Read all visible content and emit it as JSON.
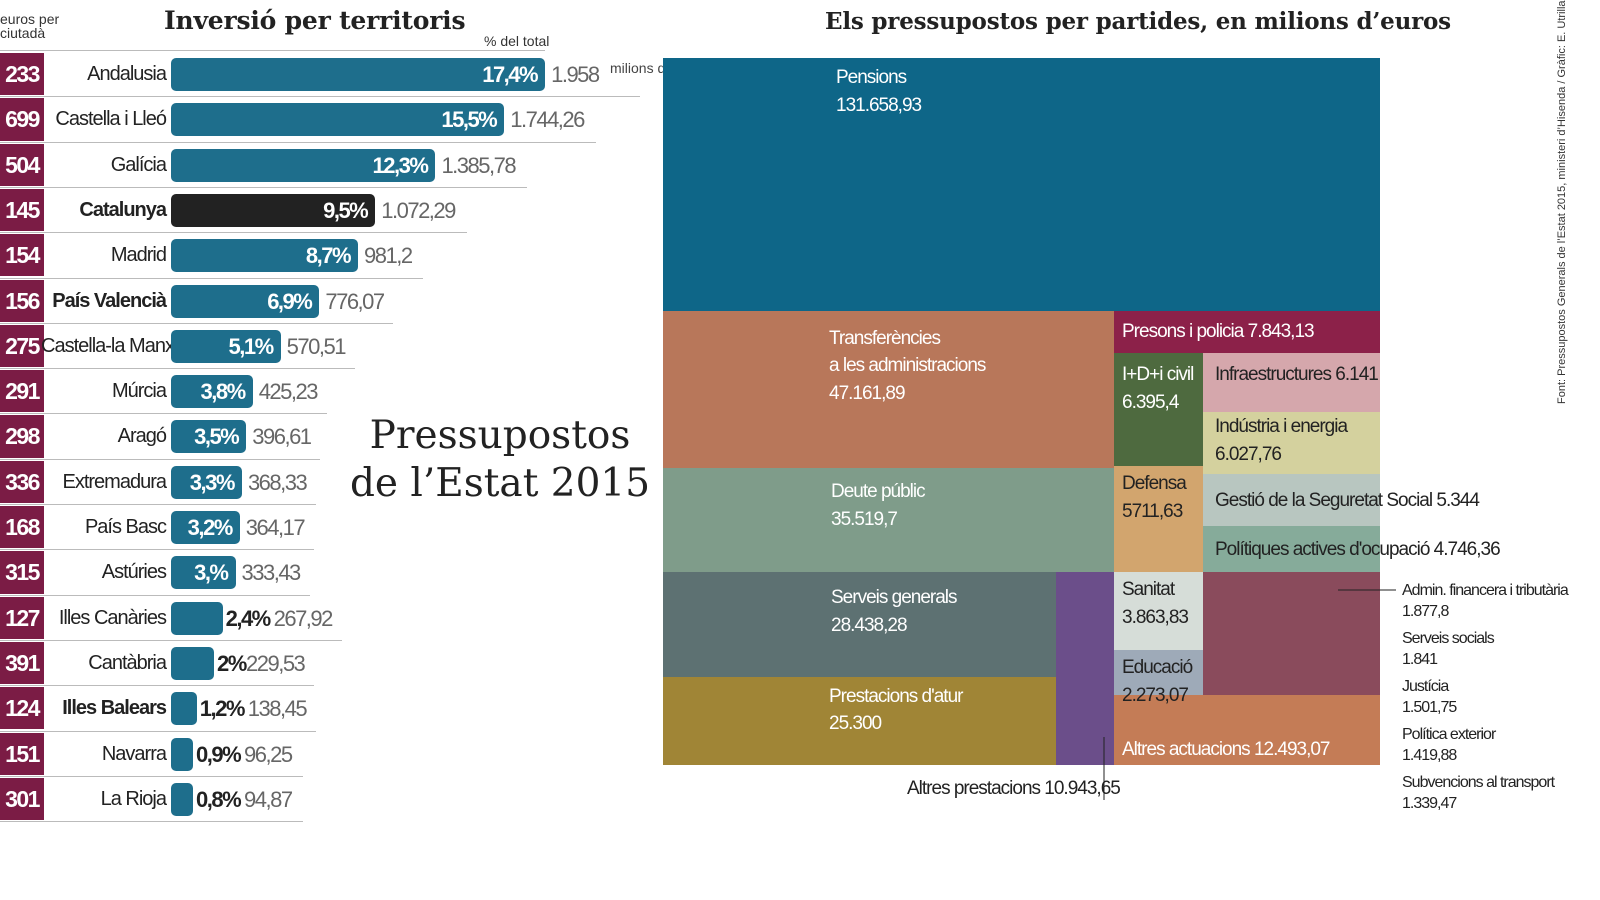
{
  "left_title": "Inversió per territoris",
  "per_capita_header": "euros per ciutadà",
  "percent_header": "% del total",
  "unit_note": "milions d'euros",
  "main_title_line1": "Pressupostos",
  "main_title_line2": "de l’Estat 2015",
  "treemap_title": "Els pressupostos per partides, en milions d’euros",
  "source": "Font: Pressupostos Generals de l’Estat 2015, ministeri d’Hisenda / Gràfic: E. Utrilla",
  "colors": {
    "percapita": "#7b1c45",
    "bar": "#1e6e8c",
    "bar_catalunya": "#222222"
  },
  "chart_data": [
    {
      "type": "bar",
      "title": "Inversió per territoris",
      "ylabel": "% del total",
      "regions": [
        {
          "name": "Andalusia",
          "per_capita": "233",
          "percent_label": "17,4%",
          "percent": 17.4,
          "value_label": "1.958",
          "value": 1958,
          "bold": false
        },
        {
          "name": "Castella i Lleó",
          "per_capita": "699",
          "percent_label": "15,5%",
          "percent": 15.5,
          "value_label": "1.744,26",
          "value": 1744.26,
          "bold": false
        },
        {
          "name": "Galícia",
          "per_capita": "504",
          "percent_label": "12,3%",
          "percent": 12.3,
          "value_label": "1.385,78",
          "value": 1385.78,
          "bold": false
        },
        {
          "name": "Catalunya",
          "per_capita": "145",
          "percent_label": "9,5%",
          "percent": 9.5,
          "value_label": "1.072,29",
          "value": 1072.29,
          "bold": true,
          "highlight": true
        },
        {
          "name": "Madrid",
          "per_capita": "154",
          "percent_label": "8,7%",
          "percent": 8.7,
          "value_label": "981,2",
          "value": 981.2,
          "bold": false
        },
        {
          "name": "País Valencià",
          "per_capita": "156",
          "percent_label": "6,9%",
          "percent": 6.9,
          "value_label": "776,07",
          "value": 776.07,
          "bold": true
        },
        {
          "name": "Castella-la Manxa",
          "per_capita": "275",
          "percent_label": "5,1%",
          "percent": 5.1,
          "value_label": "570,51",
          "value": 570.51,
          "bold": false
        },
        {
          "name": "Múrcia",
          "per_capita": "291",
          "percent_label": "3,8%",
          "percent": 3.8,
          "value_label": "425,23",
          "value": 425.23,
          "bold": false
        },
        {
          "name": "Aragó",
          "per_capita": "298",
          "percent_label": "3,5%",
          "percent": 3.5,
          "value_label": "396,61",
          "value": 396.61,
          "bold": false
        },
        {
          "name": "Extremadura",
          "per_capita": "336",
          "percent_label": "3,3%",
          "percent": 3.3,
          "value_label": "368,33",
          "value": 368.33,
          "bold": false
        },
        {
          "name": "País Basc",
          "per_capita": "168",
          "percent_label": "3,2%",
          "percent": 3.2,
          "value_label": "364,17",
          "value": 364.17,
          "bold": false
        },
        {
          "name": "Astúries",
          "per_capita": "315",
          "percent_label": "3,%",
          "percent": 3.0,
          "value_label": "333,43",
          "value": 333.43,
          "bold": false
        },
        {
          "name": "Illes Canàries",
          "per_capita": "127",
          "percent_label": "2,4%",
          "percent": 2.4,
          "value_label": "267,92",
          "value": 267.92,
          "bold": false
        },
        {
          "name": "Cantàbria",
          "per_capita": "391",
          "percent_label": "2%",
          "percent": 2.0,
          "value_label": "229,53",
          "value": 229.53,
          "bold": false
        },
        {
          "name": "Illes Balears",
          "per_capita": "124",
          "percent_label": "1,2%",
          "percent": 1.2,
          "value_label": "138,45",
          "value": 138.45,
          "bold": true
        },
        {
          "name": "Navarra",
          "per_capita": "151",
          "percent_label": "0,9%",
          "percent": 0.9,
          "value_label": "96,25",
          "value": 96.25,
          "bold": false
        },
        {
          "name": "La Rioja",
          "per_capita": "301",
          "percent_label": "0,8%",
          "percent": 0.8,
          "value_label": "94,87",
          "value": 94.87,
          "bold": false
        }
      ]
    },
    {
      "type": "treemap",
      "title": "Els pressupostos per partides, en milions d’euros",
      "items": [
        {
          "name": "Pensions",
          "value_label": "131.658,93",
          "value": 131658.93,
          "color": "#0e6688"
        },
        {
          "name": "Transferències a les administracions",
          "name_lines": [
            "Transferències",
            "a les administracions"
          ],
          "value_label": "47.161,89",
          "value": 47161.89,
          "color": "#b8775a"
        },
        {
          "name": "Deute públic",
          "value_label": "35.519,7",
          "value": 35519.7,
          "color": "#7f9c8a"
        },
        {
          "name": "Serveis generals",
          "value_label": "28.438,28",
          "value": 28438.28,
          "color": "#5d7172"
        },
        {
          "name": "Prestacions d'atur",
          "value_label": "25.300",
          "value": 25300,
          "color": "#a08536"
        },
        {
          "name": "Altres prestacions",
          "value_label": "10.943,65",
          "value": 10943.65,
          "color": "#6b4e8a"
        },
        {
          "name": "Presons i policia",
          "value_label": "7.843,13",
          "value": 7843.13,
          "color": "#8c2149"
        },
        {
          "name": "I+D+i civil",
          "value_label": "6.395,4",
          "value": 6395.4,
          "color": "#4e6a3f"
        },
        {
          "name": "Infraestructures",
          "value_label": "6.141",
          "value": 6141,
          "color": "#d5a7ac"
        },
        {
          "name": "Indústria i energia",
          "value_label": "6.027,76",
          "value": 6027.76,
          "color": "#d4d19e"
        },
        {
          "name": "Defensa",
          "value_label": "5711,63",
          "value": 5711.63,
          "color": "#d2a56e"
        },
        {
          "name": "Gestió de la Seguretat Social",
          "value_label": "5.344",
          "value": 5344,
          "color": "#b8c6c0"
        },
        {
          "name": "Polítiques actives d'ocupació",
          "value_label": "4.746,36",
          "value": 4746.36,
          "color": "#86ab9a"
        },
        {
          "name": "Sanitat",
          "value_label": "3.863,83",
          "value": 3863.83,
          "color": "#d6ddd8"
        },
        {
          "name": "Educació",
          "value_label": "2.273,07",
          "value": 2273.07,
          "color": "#9eaab8"
        },
        {
          "name": "Altres actuacions",
          "value_label": "12.493,07",
          "value": 12493.07,
          "color": "#c47c56"
        },
        {
          "name": "Admin. financera i tributària",
          "value_label": "1.877,8",
          "value": 1877.8,
          "color": "#8a4b5c"
        }
      ],
      "side_labels": [
        {
          "name": "Admin. financera i tributària",
          "value_label": "1.877,8"
        },
        {
          "name": "Serveis socials",
          "value_label": "1.841"
        },
        {
          "name": "Justícia",
          "value_label": "1.501,75"
        },
        {
          "name": "Política exterior",
          "value_label": "1.419,88"
        },
        {
          "name": "Subvencions al transport",
          "value_label": "1.339,47"
        }
      ]
    }
  ]
}
